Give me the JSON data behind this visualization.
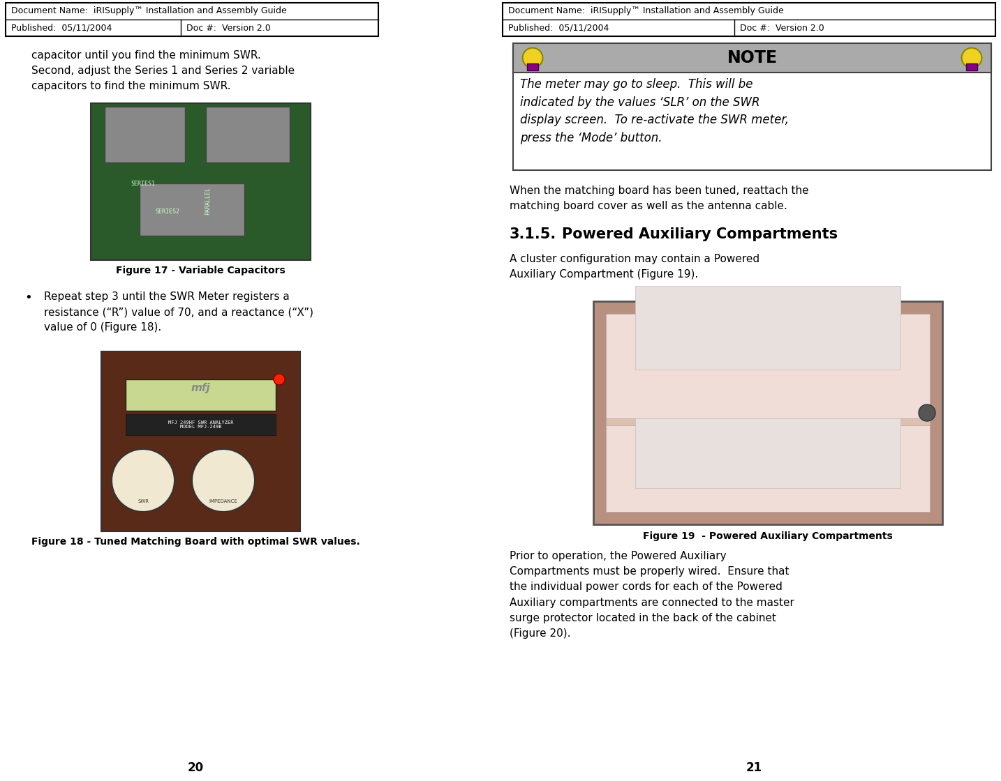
{
  "bg_color": "#ffffff",
  "left_page_num": "20",
  "right_page_num": "21",
  "header_row1": "Document Name:  iRISupply™ Installation and Assembly Guide",
  "header_row2_left": "Published:  05/11/2004",
  "header_row2_right": "Doc #:  Version 2.0",
  "left_text_top": "capacitor until you find the minimum SWR.\nSecond, adjust the Series 1 and Series 2 variable\ncapacitors to find the minimum SWR.",
  "fig17_caption": "Figure 17 - Variable Capacitors",
  "bullet_text": "Repeat step 3 until the SWR Meter registers a\nresistance (“R”) value of 70, and a reactance (“X”)\nvalue of 0 (Figure 18).",
  "fig18_caption": "Figure 18 - Tuned Matching Board with optimal SWR values.",
  "note_title": "NOTE",
  "note_body": "The meter may go to sleep.  This will be\nindicated by the values ‘SLR’ on the SWR\ndisplay screen.  To re-activate the SWR meter,\npress the ‘Mode’ button.",
  "right_text1": "When the matching board has been tuned, reattach the\nmatching board cover as well as the antenna cable.",
  "section_num": "3.1.5.",
  "section_title": "Powered Auxiliary Compartments",
  "right_text2": "A cluster configuration may contain a Powered\nAuxiliary Compartment (Figure 19).",
  "fig19_caption": "Figure 19  - Powered Auxiliary Compartments",
  "right_text3": "Prior to operation, the Powered Auxiliary\nCompartments must be properly wired.  Ensure that\nthe individual power cords for each of the Powered\nAuxiliary compartments are connected to the master\nsurge protector located in the back of the cabinet\n(Figure 20).",
  "note_hdr_color": "#aaaaaa",
  "note_border_color": "#444444",
  "img17_outer": "#2a5a2a",
  "img17_inner": "#3a7a3a",
  "img18_outer": "#5a2a18",
  "img18_inner": "#7a3a22",
  "img19_outer": "#c0a090",
  "img19_inner": "#e8d4c8",
  "img19_shelf": "#d4b0a0"
}
